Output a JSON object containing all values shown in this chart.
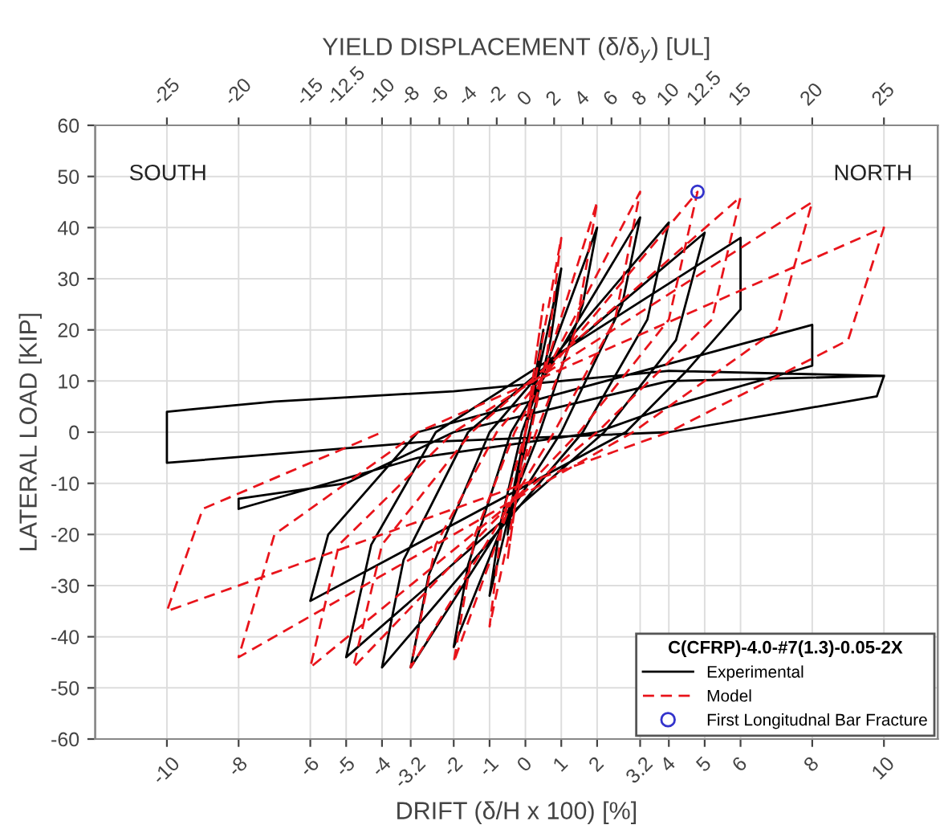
{
  "chart_data": {
    "type": "line",
    "xlabel": "DRIFT (δ/H x 100) [%]",
    "x2label": "YIELD DISPLACEMENT (δ/δ$_{y}$) [UL]",
    "ylabel": "LATERAL LOAD [KIP]",
    "legend_title": "C(CFRP)-4.0-#7(1.3)-0.05-2X",
    "annotations": [
      "SOUTH",
      "NORTH"
    ],
    "xlim": [
      -12,
      11.5
    ],
    "xticks": [
      -10,
      -8,
      -6,
      -5,
      -4,
      -3.2,
      -2,
      -1,
      0,
      1,
      2,
      3.2,
      4,
      5,
      6,
      8,
      10
    ],
    "x2lim": [
      -30,
      28.75
    ],
    "x2ticks": [
      -25,
      -20,
      -15,
      -12.5,
      -10,
      -8,
      -6,
      -4,
      -2,
      0,
      2,
      4,
      6,
      8,
      10,
      12.5,
      15,
      20,
      25
    ],
    "ylim": [
      -60,
      60
    ],
    "yticks": [
      -60,
      -50,
      -40,
      -30,
      -20,
      -10,
      0,
      10,
      20,
      30,
      40,
      50,
      60
    ],
    "grid": true,
    "legend": "bottom right",
    "series": [
      {
        "name": "Experimental",
        "color": "#000000",
        "line_style": "solid",
        "marker": "none",
        "x": [
          0,
          0.5,
          0.3,
          0,
          -0.5,
          -0.3,
          0,
          1,
          0.7,
          0.1,
          -1,
          -0.7,
          -0.1,
          2,
          1.6,
          0.4,
          -2,
          -1.6,
          -0.4,
          3.2,
          2.7,
          1,
          -3.2,
          -2.7,
          -1,
          4,
          3.4,
          1.6,
          -4,
          -3.4,
          -1.6,
          5,
          4.2,
          2.2,
          -5,
          -4.3,
          -2.5,
          6,
          6,
          4.5,
          2.8,
          -6,
          -5.5,
          -3,
          8,
          8,
          4,
          2,
          -3,
          -8,
          -8,
          -5,
          -2,
          4,
          10,
          9.8,
          4,
          -3,
          -10,
          -10,
          -7,
          -2,
          4,
          10
        ],
        "values": [
          0,
          20,
          10,
          0,
          -20,
          -10,
          0,
          32,
          18,
          0,
          -32,
          -18,
          0,
          40,
          25,
          0,
          -42,
          -26,
          0,
          42,
          25,
          0,
          -46,
          -28,
          0,
          41,
          22,
          0,
          -46,
          -25,
          0,
          39,
          18,
          0,
          -44,
          -22,
          0,
          38,
          24,
          12,
          0,
          -33,
          -20,
          0,
          21,
          13,
          5,
          0,
          -5,
          -15,
          -13,
          -10,
          0,
          10,
          11,
          7,
          0,
          -2,
          -6,
          4,
          6,
          8,
          12,
          11
        ]
      },
      {
        "name": "Model",
        "color": "#e8141b",
        "line_style": "dashed",
        "marker": "none",
        "x": [
          0,
          0.5,
          0.2,
          -0.5,
          -0.2,
          0,
          1,
          0.6,
          -1,
          -0.6,
          0,
          2,
          1.4,
          0.3,
          -2,
          -1.4,
          -0.3,
          3.2,
          2.5,
          0.8,
          -3.2,
          -2.5,
          -0.8,
          4.8,
          4,
          1.5,
          -4.8,
          -4,
          -1.5,
          6,
          5.2,
          2,
          -6,
          -5.2,
          -2,
          8,
          7,
          3,
          -8,
          -7,
          -3,
          10,
          9,
          4,
          -10,
          -9,
          -4
        ],
        "values": [
          0,
          25,
          10,
          -25,
          -10,
          0,
          38,
          15,
          -38,
          -15,
          0,
          45,
          20,
          0,
          -45,
          -20,
          0,
          47,
          22,
          0,
          -46,
          -22,
          0,
          47,
          22,
          0,
          -46,
          -22,
          0,
          46,
          22,
          0,
          -46,
          -22,
          0,
          45,
          20,
          0,
          -44,
          -20,
          0,
          40,
          18,
          0,
          -35,
          -15,
          0
        ]
      },
      {
        "name": "First Longitudnal Bar Fracture",
        "type": "scatter",
        "color": "#3333cc",
        "marker": "circle",
        "x": [
          4.8
        ],
        "values": [
          47
        ]
      }
    ]
  }
}
